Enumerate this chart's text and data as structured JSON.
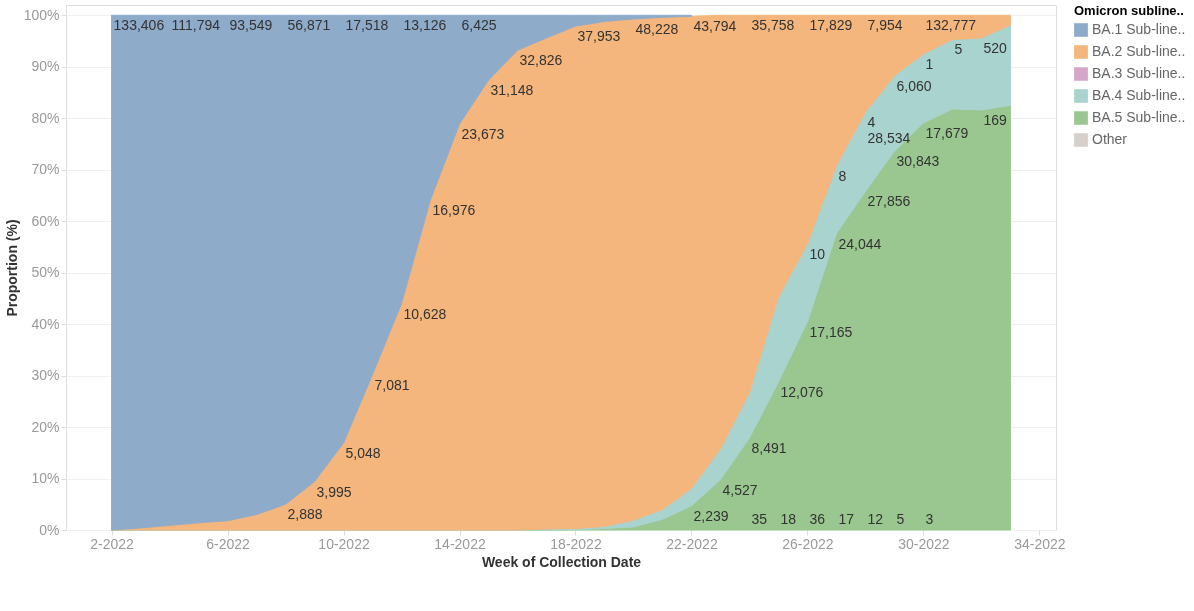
{
  "chart_data": {
    "type": "area",
    "stacked": true,
    "xlabel": "Week of Collection Date",
    "ylabel": "Proportion (%)",
    "legend_title": "Omicron subline..",
    "legend": "right",
    "grid": "y",
    "x": [
      "2022-01-02",
      "2022-01-09",
      "2022-01-16",
      "2022-01-23",
      "2022-01-30",
      "2022-02-06",
      "2022-02-13",
      "2022-02-20",
      "2022-02-27",
      "2022-03-06",
      "2022-03-13",
      "2022-03-20",
      "2022-03-27",
      "2022-04-03",
      "2022-04-10",
      "2022-04-17",
      "2022-04-24",
      "2022-05-01",
      "2022-05-08",
      "2022-05-15",
      "2022-05-22",
      "2022-05-29",
      "2022-06-05",
      "2022-06-12",
      "2022-06-19",
      "2022-06-26",
      "2022-07-03",
      "2022-07-10",
      "2022-07-17",
      "2022-07-24",
      "2022-07-31",
      "2022-08-07"
    ],
    "xlim": [
      "2021-12-22",
      "2022-08-18"
    ],
    "xticks": [
      {
        "value": "2022-01-02",
        "label": "2-2022"
      },
      {
        "value": "2022-01-30",
        "label": "6-2022"
      },
      {
        "value": "2022-02-27",
        "label": "10-2022"
      },
      {
        "value": "2022-03-27",
        "label": "14-2022"
      },
      {
        "value": "2022-04-24",
        "label": "18-2022"
      },
      {
        "value": "2022-05-22",
        "label": "22-2022"
      },
      {
        "value": "2022-06-19",
        "label": "26-2022"
      },
      {
        "value": "2022-07-17",
        "label": "30-2022"
      },
      {
        "value": "2022-08-14",
        "label": "34-2022"
      }
    ],
    "ylim": [
      0,
      102
    ],
    "yticks": [
      {
        "value": 0,
        "label": "0%"
      },
      {
        "value": 10,
        "label": "10%"
      },
      {
        "value": 20,
        "label": "20%"
      },
      {
        "value": 30,
        "label": "30%"
      },
      {
        "value": 40,
        "label": "40%"
      },
      {
        "value": 50,
        "label": "50%"
      },
      {
        "value": 60,
        "label": "60%"
      },
      {
        "value": 70,
        "label": "70%"
      },
      {
        "value": 80,
        "label": "80%"
      },
      {
        "value": 90,
        "label": "90%"
      },
      {
        "value": 100,
        "label": "100%"
      }
    ],
    "series": [
      {
        "name": "Other",
        "color": "#d7cfcc",
        "values": [
          null,
          null,
          null,
          null,
          null,
          null,
          null,
          null,
          null,
          null,
          null,
          null,
          null,
          null,
          null,
          null,
          null,
          null,
          null,
          null,
          null,
          null,
          null,
          null,
          null,
          null,
          null,
          null,
          null,
          null,
          null,
          null
        ]
      },
      {
        "name": "BA.5 Sub-line..",
        "color": "#9ac790",
        "values": [
          0,
          0,
          0,
          0,
          0,
          0,
          0,
          0,
          0,
          0,
          0,
          0,
          0,
          0,
          0,
          0,
          0.1,
          0.3,
          0.6,
          2.1,
          4.7,
          9.8,
          17.9,
          28.8,
          40.5,
          57.6,
          65.8,
          73.6,
          79.1,
          81.8,
          81.6,
          82.5
        ]
      },
      {
        "name": "BA.4 Sub-line..",
        "color": "#a8d3cf",
        "values": [
          0,
          0,
          0,
          0,
          0,
          0,
          0,
          0,
          0,
          0,
          0,
          0,
          0,
          0,
          0,
          0.2,
          0.2,
          0.4,
          1.3,
          1.9,
          3.4,
          6.0,
          8.8,
          16.5,
          15.1,
          13.2,
          15.4,
          14.7,
          13.4,
          13.5,
          14.0,
          15.6
        ]
      },
      {
        "name": "BA.3 Sub-line..",
        "color": "#d4a6c8",
        "values": [
          null,
          null,
          null,
          null,
          null,
          null,
          null,
          null,
          null,
          null,
          null,
          null,
          null,
          null,
          null,
          null,
          null,
          null,
          null,
          null,
          null,
          null,
          null,
          null,
          null,
          null,
          null,
          null,
          null,
          null,
          null,
          null
        ]
      },
      {
        "name": "BA.2 Sub-line..",
        "color": "#f4b67c",
        "values": [
          0,
          0.4,
          0.9,
          1.4,
          1.8,
          3.0,
          5.0,
          9.4,
          16.9,
          30.2,
          44,
          64.2,
          78.9,
          87.4,
          93.2,
          95.4,
          97.6,
          98.1,
          97.4,
          95.6,
          91.7,
          84.2,
          73.3,
          54.7,
          44.4,
          29.2,
          18.8,
          11.7,
          7.5,
          4.7,
          4.4,
          1.9
        ]
      },
      {
        "name": "BA.1 Sub-line..",
        "color": "#8fabca",
        "values": [
          100,
          99.6,
          99.1,
          98.6,
          98.2,
          97.0,
          95.0,
          90.6,
          83.1,
          69.8,
          56.0,
          35.8,
          21.1,
          12.6,
          6.8,
          4.4,
          2.1,
          1.2,
          0.7,
          0.4,
          0.2,
          null,
          null,
          null,
          null,
          null,
          null,
          null,
          null,
          null,
          null,
          null
        ]
      }
    ],
    "annotations": [
      {
        "text": "133,406",
        "x": "2022-01-02",
        "y": 100
      },
      {
        "text": "111,794",
        "x": "2022-01-16",
        "y": 100
      },
      {
        "text": "93,549",
        "x": "2022-01-30",
        "y": 100
      },
      {
        "text": "56,871",
        "x": "2022-02-13",
        "y": 100
      },
      {
        "text": "17,518",
        "x": "2022-02-27",
        "y": 100
      },
      {
        "text": "13,126",
        "x": "2022-03-13",
        "y": 100
      },
      {
        "text": "6,425",
        "x": "2022-03-27",
        "y": 100
      },
      {
        "text": "2,888",
        "x": "2022-02-13",
        "y": 5.0
      },
      {
        "text": "3,995",
        "x": "2022-02-20",
        "y": 9.4
      },
      {
        "text": "5,048",
        "x": "2022-02-27",
        "y": 16.9
      },
      {
        "text": "7,081",
        "x": "2022-03-06",
        "y": 30.2
      },
      {
        "text": "10,628",
        "x": "2022-03-13",
        "y": 44
      },
      {
        "text": "16,976",
        "x": "2022-03-20",
        "y": 64.2
      },
      {
        "text": "23,673",
        "x": "2022-03-27",
        "y": 78.9
      },
      {
        "text": "31,148",
        "x": "2022-04-03",
        "y": 87.4
      },
      {
        "text": "32,826",
        "x": "2022-04-10",
        "y": 93.2
      },
      {
        "text": "37,953",
        "x": "2022-04-24",
        "y": 97.9
      },
      {
        "text": "48,228",
        "x": "2022-05-08",
        "y": 99.3
      },
      {
        "text": "43,794",
        "x": "2022-05-22",
        "y": 99.8
      },
      {
        "text": "35,758",
        "x": "2022-06-05",
        "y": 100
      },
      {
        "text": "17,829",
        "x": "2022-06-19",
        "y": 100
      },
      {
        "text": "7,954",
        "x": "2022-07-03",
        "y": 100
      },
      {
        "text": "132,777",
        "x": "2022-07-17",
        "y": 100
      },
      {
        "text": "2,239",
        "x": "2022-05-22",
        "y": 4.7
      },
      {
        "text": "4,527",
        "x": "2022-05-29",
        "y": 9.8
      },
      {
        "text": "8,491",
        "x": "2022-06-05",
        "y": 17.9
      },
      {
        "text": "12,076",
        "x": "2022-06-12",
        "y": 28.8
      },
      {
        "text": "17,165",
        "x": "2022-06-19",
        "y": 40.5
      },
      {
        "text": "24,044",
        "x": "2022-06-26",
        "y": 57.6
      },
      {
        "text": "27,856",
        "x": "2022-07-03",
        "y": 65.8
      },
      {
        "text": "30,843",
        "x": "2022-07-10",
        "y": 73.6
      },
      {
        "text": "17,679",
        "x": "2022-07-17",
        "y": 79.1
      },
      {
        "text": "169",
        "x": "2022-07-31",
        "y": 81.6
      },
      {
        "text": "4",
        "x": "2022-07-03",
        "y": 81.2
      },
      {
        "text": "28,534",
        "x": "2022-07-03",
        "y": 81.2
      },
      {
        "text": "6,060",
        "x": "2022-07-10",
        "y": 88.3
      },
      {
        "text": "1",
        "x": "2022-07-17",
        "y": 92.5
      },
      {
        "text": "5",
        "x": "2022-07-24",
        "y": 95.3
      },
      {
        "text": "520",
        "x": "2022-07-31",
        "y": 95.6
      },
      {
        "text": "10",
        "x": "2022-06-19",
        "y": 55.6
      },
      {
        "text": "8",
        "x": "2022-06-26",
        "y": 70.8
      },
      {
        "text": "35",
        "x": "2022-06-05",
        "y": 0
      },
      {
        "text": "18",
        "x": "2022-06-12",
        "y": 0
      },
      {
        "text": "36",
        "x": "2022-06-19",
        "y": 0
      },
      {
        "text": "17",
        "x": "2022-06-26",
        "y": 0
      },
      {
        "text": "12",
        "x": "2022-07-03",
        "y": 0
      },
      {
        "text": "5",
        "x": "2022-07-10",
        "y": 0
      },
      {
        "text": "3",
        "x": "2022-07-17",
        "y": 0
      }
    ]
  }
}
